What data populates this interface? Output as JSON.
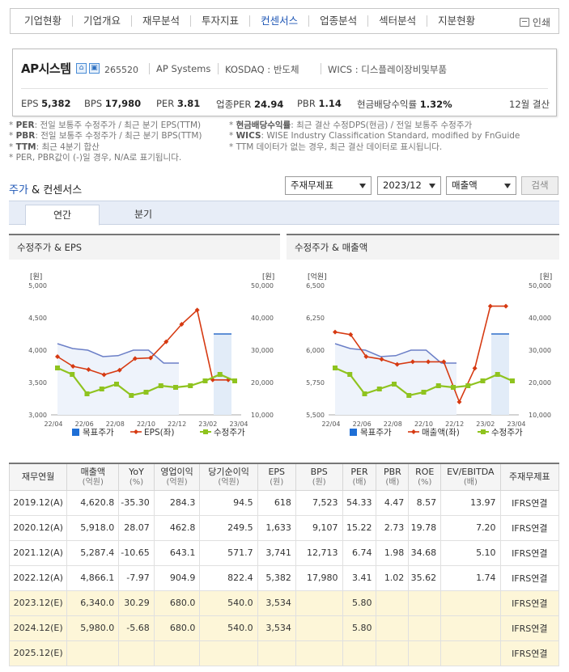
{
  "tabs": [
    "기업현황",
    "기업개요",
    "재무분석",
    "투자지표",
    "컨센서스",
    "업종분석",
    "섹터분석",
    "지분현황"
  ],
  "active_tab": "컨센서스",
  "print_label": "인쇄",
  "company": {
    "name": "AP시스템",
    "code": "265520",
    "eng": "AP Systems",
    "market": "KOSDAQ : 반도체",
    "wics": "WICS : 디스플레이장비및부품",
    "eps_label": "EPS",
    "eps": "5,382",
    "bps_label": "BPS",
    "bps": "17,980",
    "per_label": "PER",
    "per": "3.81",
    "iper_label": "업종PER",
    "iper": "24.94",
    "pbr_label": "PBR",
    "pbr": "1.14",
    "div_label": "현금배당수익률",
    "div": "1.32%",
    "fy": "12월 결산"
  },
  "notes_left": [
    [
      "PER",
      ": 전일 보통주 수정주가 / 최근 분기 EPS(TTM)"
    ],
    [
      "PBR",
      ": 전일 보통주 수정주가 / 최근 분기 BPS(TTM)"
    ],
    [
      "TTM",
      ": 최근 4분기 합산"
    ],
    [
      "",
      "PER, PBR값이 (-)일 경우, N/A로 표기됩니다."
    ]
  ],
  "notes_right": [
    [
      "현금배당수익률",
      ": 최근 결산 수정DPS(현금) / 전일 보통주 수정주가"
    ],
    [
      "WICS",
      ": WISE Industry Classification Standard, modified by FnGuide"
    ],
    [
      "",
      "TTM 데이터가 없는 경우, 최근 결산 데이터로 표시됩니다."
    ]
  ],
  "section": {
    "a": "주가",
    "b": " & 컨센서스"
  },
  "selects": {
    "type": "주재무제표",
    "period": "2023/12",
    "item": "매출액"
  },
  "search_button": "검색",
  "period_tabs": [
    "연간",
    "분기"
  ],
  "colors": {
    "target": "#1f6fd6",
    "red": "#d63a12",
    "green": "#8fc31f",
    "blue_line": "#6b7fc7"
  },
  "chart_data": [
    {
      "type": "line",
      "title": "수정주가 & EPS",
      "left_unit": "[원]",
      "right_unit": "[원]",
      "x_ticks": [
        "22/04",
        "22/06",
        "22/08",
        "22/10",
        "22/12",
        "23/02",
        "23/04"
      ],
      "left_ticks": [
        "5,000",
        "4,500",
        "4,000",
        "3,500",
        "3,000"
      ],
      "right_ticks": [
        "50,000",
        "40,000",
        "30,000",
        "20,000",
        "10,000"
      ],
      "left_range": [
        3000,
        5000
      ],
      "right_range": [
        10000,
        50000
      ],
      "band": {
        "name": "목표주가",
        "value": 35000,
        "label_color": "#1f6fd6"
      },
      "legend": [
        "목표주가",
        "EPS(좌)",
        "수정주가"
      ],
      "series": [
        {
          "name": "수정주가",
          "axis": "right",
          "line_color": "#6b7fc7",
          "values": [
            32000,
            30500,
            30000,
            28000,
            28300,
            30000,
            30000,
            26000,
            26000
          ]
        },
        {
          "name": "EPS(좌)",
          "axis": "left",
          "values": [
            3900,
            3750,
            3700,
            3620,
            3690,
            3870,
            3880,
            4130,
            4400,
            4620,
            3540,
            3540
          ]
        },
        {
          "name": "수정주가",
          "axis": "right",
          "values": [
            24500,
            22500,
            16500,
            18000,
            19500,
            16000,
            17000,
            19000,
            18500,
            19000,
            20500,
            22500,
            20500
          ]
        }
      ]
    },
    {
      "type": "line",
      "title": "수정주가 & 매출액",
      "left_unit": "[억원]",
      "right_unit": "[원]",
      "x_ticks": [
        "22/04",
        "22/06",
        "22/08",
        "22/10",
        "22/12",
        "23/02",
        "23/04"
      ],
      "left_ticks": [
        "6,500",
        "6,250",
        "6,000",
        "5,750",
        "5,500"
      ],
      "right_ticks": [
        "50,000",
        "40,000",
        "30,000",
        "20,000",
        "10,000"
      ],
      "left_range": [
        5500,
        6500
      ],
      "right_range": [
        10000,
        50000
      ],
      "band": {
        "name": "목표주가",
        "value": 35000,
        "label_color": "#1f6fd6"
      },
      "legend": [
        "목표주가",
        "매출액(좌)",
        "수정주가"
      ],
      "series": [
        {
          "name": "수정주가",
          "axis": "right",
          "line_color": "#6b7fc7",
          "values": [
            32000,
            30500,
            30000,
            28000,
            28300,
            30000,
            30000,
            26000,
            26000
          ]
        },
        {
          "name": "매출액(좌)",
          "axis": "left",
          "values": [
            6140,
            6120,
            5950,
            5930,
            5890,
            5910,
            5910,
            5910,
            5600,
            5860,
            6340,
            6340
          ]
        },
        {
          "name": "수정주가",
          "axis": "right",
          "values": [
            24500,
            22500,
            16500,
            18000,
            19500,
            16000,
            17000,
            19000,
            18500,
            19000,
            20500,
            22500,
            20500
          ]
        }
      ]
    }
  ],
  "table": {
    "headers": [
      [
        "재무연월",
        ""
      ],
      [
        "매출액",
        "(억원)"
      ],
      [
        "YoY",
        "(%)"
      ],
      [
        "영업이익",
        "(억원)"
      ],
      [
        "당기순이익",
        "(억원)"
      ],
      [
        "EPS",
        "(원)"
      ],
      [
        "BPS",
        "(원)"
      ],
      [
        "PER",
        "(배)"
      ],
      [
        "PBR",
        "(배)"
      ],
      [
        "ROE",
        "(%)"
      ],
      [
        "EV/EBITDA",
        "(배)"
      ],
      [
        "주재무제표",
        ""
      ]
    ],
    "rows": [
      {
        "est": false,
        "cells": [
          "2019.12(A)",
          "4,620.8",
          "-35.30",
          "284.3",
          "94.5",
          "618",
          "7,523",
          "54.33",
          "4.47",
          "8.57",
          "13.97",
          "IFRS연결"
        ]
      },
      {
        "est": false,
        "cells": [
          "2020.12(A)",
          "5,918.0",
          "28.07",
          "462.8",
          "249.5",
          "1,633",
          "9,107",
          "15.22",
          "2.73",
          "19.78",
          "7.20",
          "IFRS연결"
        ]
      },
      {
        "est": false,
        "cells": [
          "2021.12(A)",
          "5,287.4",
          "-10.65",
          "643.1",
          "571.7",
          "3,741",
          "12,713",
          "6.74",
          "1.98",
          "34.68",
          "5.10",
          "IFRS연결"
        ]
      },
      {
        "est": false,
        "cells": [
          "2022.12(A)",
          "4,866.1",
          "-7.97",
          "904.9",
          "822.4",
          "5,382",
          "17,980",
          "3.41",
          "1.02",
          "35.62",
          "1.74",
          "IFRS연결"
        ]
      },
      {
        "est": true,
        "cells": [
          "2023.12(E)",
          "6,340.0",
          "30.29",
          "680.0",
          "540.0",
          "3,534",
          "",
          "5.80",
          "",
          "",
          "",
          "IFRS연결"
        ]
      },
      {
        "est": true,
        "cells": [
          "2024.12(E)",
          "5,980.0",
          "-5.68",
          "680.0",
          "540.0",
          "3,534",
          "",
          "5.80",
          "",
          "",
          "",
          "IFRS연결"
        ]
      },
      {
        "est": true,
        "cells": [
          "2025.12(E)",
          "",
          "",
          "",
          "",
          "",
          "",
          "",
          "",
          "",
          "",
          "IFRS연결"
        ]
      }
    ]
  }
}
